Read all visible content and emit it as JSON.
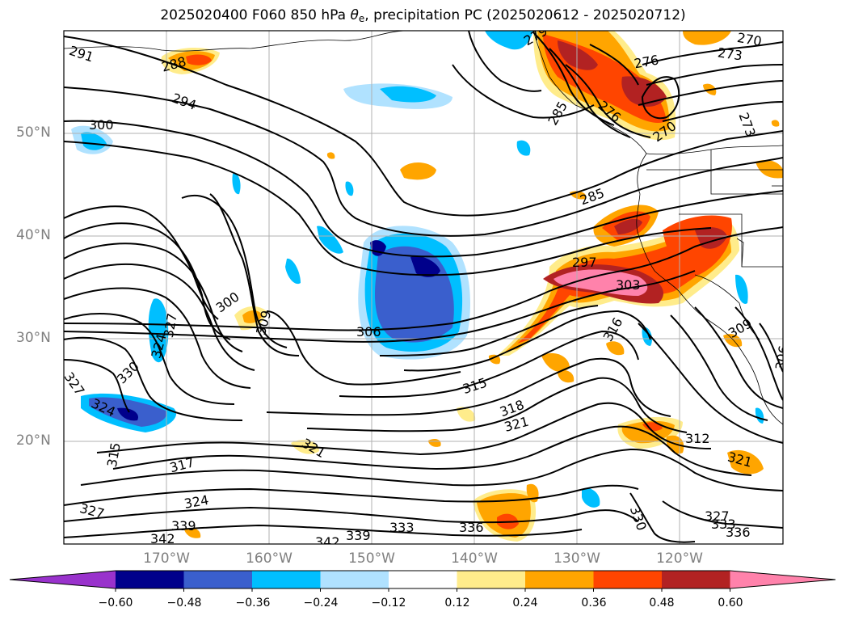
{
  "title": {
    "prefix": "2025020400 F060 850 hPa ",
    "theta": "θ",
    "sub": "e",
    "suffix": ", precipitation PC (2025020612 - 2025020712)"
  },
  "axes": {
    "lat_labels": [
      "50°N",
      "40°N",
      "30°N",
      "20°N"
    ],
    "lon_labels": [
      "170°W",
      "160°W",
      "150°W",
      "140°W",
      "130°W",
      "120°W"
    ]
  },
  "colorbar": {
    "ticks": [
      "−0.60",
      "−0.48",
      "−0.36",
      "−0.24",
      "−0.12",
      "0.12",
      "0.24",
      "0.36",
      "0.48",
      "0.60"
    ],
    "colors": [
      "#9932cc",
      "#00008b",
      "#3a5fcd",
      "#00bfff",
      "#b0e2ff",
      "#ffffff",
      "#ffec8b",
      "#ffa500",
      "#ff4500",
      "#b22222",
      "#ff82ab"
    ]
  },
  "contour_labels": [
    "291",
    "288",
    "294",
    "300",
    "279",
    "270",
    "276",
    "273",
    "285",
    "276",
    "270",
    "273",
    "285",
    "297",
    "303",
    "300",
    "309",
    "306",
    "315",
    "318",
    "321",
    "312",
    "321",
    "324",
    "327",
    "330",
    "324",
    "327",
    "315",
    "317",
    "321",
    "324",
    "327",
    "339",
    "342",
    "342",
    "339",
    "333",
    "336",
    "330",
    "327",
    "333",
    "336",
    "309",
    "316",
    "306"
  ]
}
